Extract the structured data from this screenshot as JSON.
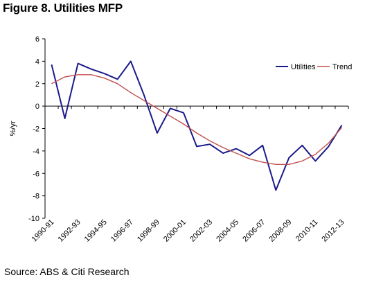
{
  "figure": {
    "title": "Figure 8. Utilities MFP",
    "source": "Source: ABS & Citi Research"
  },
  "chart_data": {
    "type": "line",
    "title": "Figure 8. Utilities MFP",
    "xlabel": "",
    "ylabel": "%/yr",
    "ylim": [
      -10,
      6
    ],
    "yticks": [
      6,
      4,
      2,
      0,
      -2,
      -4,
      -6,
      -8,
      -10
    ],
    "x": [
      "1990-91",
      "1991-92",
      "1992-93",
      "1993-94",
      "1994-95",
      "1995-96",
      "1996-97",
      "1997-98",
      "1998-99",
      "1999-00",
      "2000-01",
      "2001-02",
      "2002-03",
      "2003-04",
      "2004-05",
      "2005-06",
      "2006-07",
      "2007-08",
      "2008-09",
      "2009-10",
      "2010-11",
      "2011-12",
      "2012-13"
    ],
    "xticklabels": [
      "1990-91",
      "1992-93",
      "1994-95",
      "1996-97",
      "1998-99",
      "2000-01",
      "2002-03",
      "2004-05",
      "2006-07",
      "2008-09",
      "2010-11",
      "2012-13"
    ],
    "legend_position": "top-right",
    "grid": false,
    "series": [
      {
        "name": "Utilities",
        "color": "#1a1a8c",
        "values": [
          3.7,
          -1.1,
          3.8,
          3.3,
          2.9,
          2.4,
          4.0,
          1.0,
          -2.4,
          -0.2,
          -0.6,
          -3.6,
          -3.4,
          -4.2,
          -3.8,
          -4.4,
          -3.5,
          -7.5,
          -4.6,
          -3.5,
          -4.9,
          -3.6,
          -1.7
        ]
      },
      {
        "name": "Trend",
        "color": "#c0504d",
        "values": [
          2.0,
          2.6,
          2.8,
          2.8,
          2.5,
          2.0,
          1.2,
          0.5,
          -0.2,
          -0.9,
          -1.6,
          -2.4,
          -3.1,
          -3.7,
          -4.2,
          -4.7,
          -5.0,
          -5.2,
          -5.2,
          -4.9,
          -4.3,
          -3.3,
          -1.9
        ]
      }
    ]
  }
}
